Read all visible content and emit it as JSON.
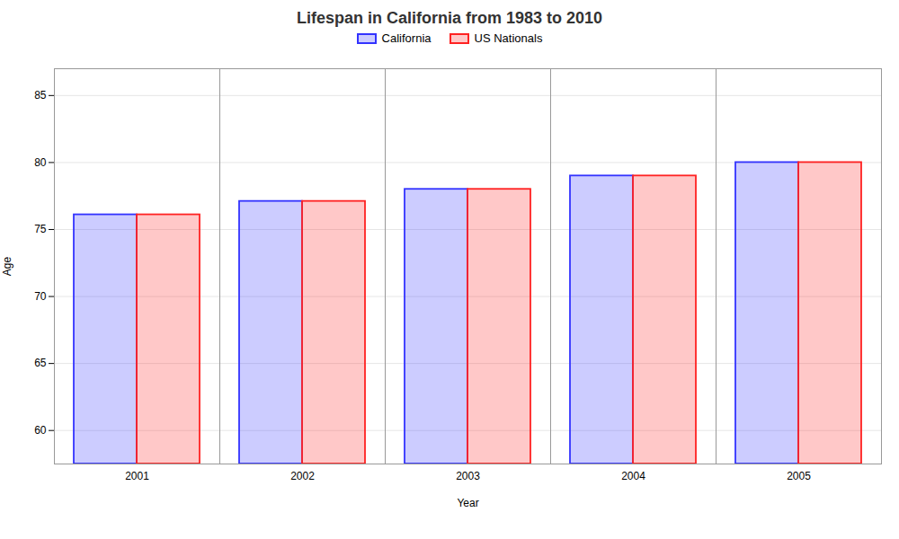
{
  "chart_data": {
    "type": "bar",
    "title": "Lifespan in California from 1983 to 2010",
    "xlabel": "Year",
    "ylabel": "Age",
    "categories": [
      "2001",
      "2002",
      "2003",
      "2004",
      "2005"
    ],
    "series": [
      {
        "name": "California",
        "color": "#3333ff",
        "values": [
          76.1,
          77.1,
          78.0,
          79.0,
          80.0
        ]
      },
      {
        "name": "US Nationals",
        "color": "#ff2222",
        "values": [
          76.1,
          77.1,
          78.0,
          79.0,
          80.0
        ]
      }
    ],
    "ylim": [
      57.5,
      87
    ],
    "yticks": [
      60,
      65,
      70,
      75,
      80,
      85
    ],
    "grid": true,
    "legend": "top"
  }
}
